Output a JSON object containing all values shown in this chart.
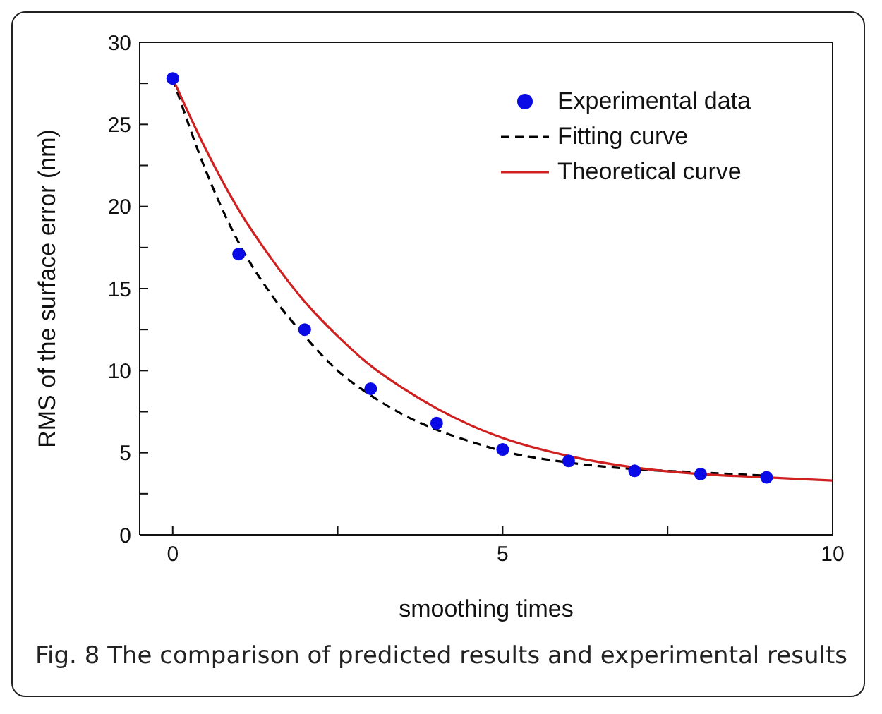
{
  "chart_data": {
    "type": "line",
    "xlabel": "smoothing times",
    "ylabel": "RMS of the surface error (nm)",
    "xlim": [
      -0.5,
      10
    ],
    "xticks": [
      0,
      {
        "value": 2.5,
        "label": null
      },
      5,
      {
        "value": 7.5,
        "label": null
      },
      10
    ],
    "ylim": [
      0,
      30
    ],
    "yticks": [
      0,
      {
        "value": 2.5,
        "label": null
      },
      5,
      {
        "value": 7.5,
        "label": null
      },
      10,
      {
        "value": 12.5,
        "label": null
      },
      15,
      {
        "value": 17.5,
        "label": null
      },
      20,
      {
        "value": 22.5,
        "label": null
      },
      25,
      {
        "value": 27.5,
        "label": null
      },
      30
    ],
    "legend": "top right",
    "annotations": [
      "Fig. 8 The comparison of predicted results and experimental results"
    ],
    "series": [
      {
        "name": "Experimental data",
        "type": "scatter",
        "marker": "circle",
        "color": "#0a0ae6",
        "x": [
          0,
          1,
          2,
          3,
          4,
          5,
          6,
          7,
          8,
          9
        ],
        "values": [
          27.8,
          17.1,
          12.5,
          8.9,
          6.8,
          5.2,
          4.5,
          3.9,
          3.7,
          3.5
        ]
      },
      {
        "name": "Fitting curve",
        "marker": "none",
        "line_style": "dashed",
        "color": "#000000",
        "x": [
          0,
          0.5,
          1,
          1.5,
          2,
          2.5,
          3,
          3.5,
          4,
          4.5,
          5,
          6,
          7,
          8,
          9
        ],
        "values": [
          27.8,
          22.2,
          17.8,
          14.6,
          12.1,
          10.0,
          8.5,
          7.3,
          6.4,
          5.7,
          5.1,
          4.4,
          4.0,
          3.8,
          3.6
        ]
      },
      {
        "name": "Theoretical curve",
        "marker": "none",
        "line_style": "solid",
        "color": "#d02020",
        "x": [
          0,
          0.5,
          1,
          1.5,
          2,
          2.5,
          3,
          3.5,
          4,
          4.5,
          5,
          6,
          7,
          8,
          9,
          10
        ],
        "values": [
          27.8,
          23.5,
          19.8,
          16.8,
          14.2,
          12.1,
          10.3,
          8.9,
          7.7,
          6.7,
          5.9,
          4.8,
          4.1,
          3.7,
          3.5,
          3.3
        ]
      }
    ]
  }
}
